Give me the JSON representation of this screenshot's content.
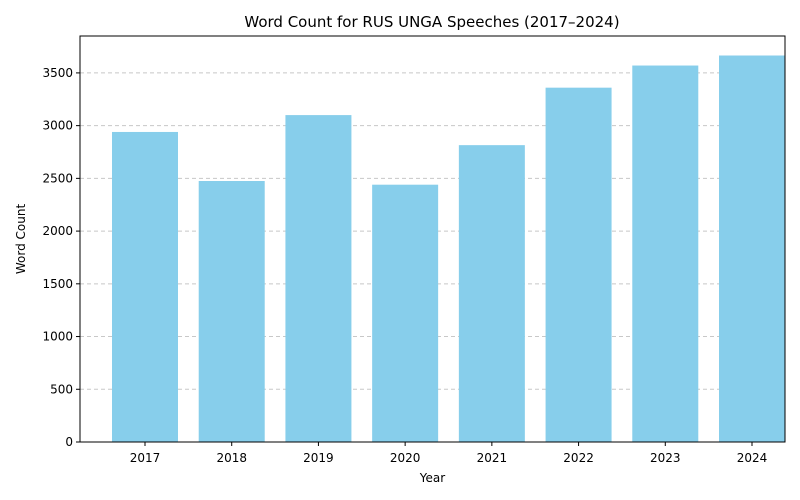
{
  "chart_data": {
    "type": "bar",
    "title": "Word Count for RUS UNGA Speeches (2017–2024)",
    "xlabel": "Year",
    "ylabel": "Word Count",
    "categories": [
      "2017",
      "2018",
      "2019",
      "2020",
      "2021",
      "2022",
      "2023",
      "2024"
    ],
    "values": [
      2940,
      2475,
      3100,
      2440,
      2815,
      3360,
      3570,
      3665
    ],
    "ylim": [
      0,
      3850
    ],
    "yticks": [
      0,
      500,
      1000,
      1500,
      2000,
      2500,
      3000,
      3500
    ],
    "grid": "y-dashed",
    "bar_color": "#87ceeb"
  }
}
